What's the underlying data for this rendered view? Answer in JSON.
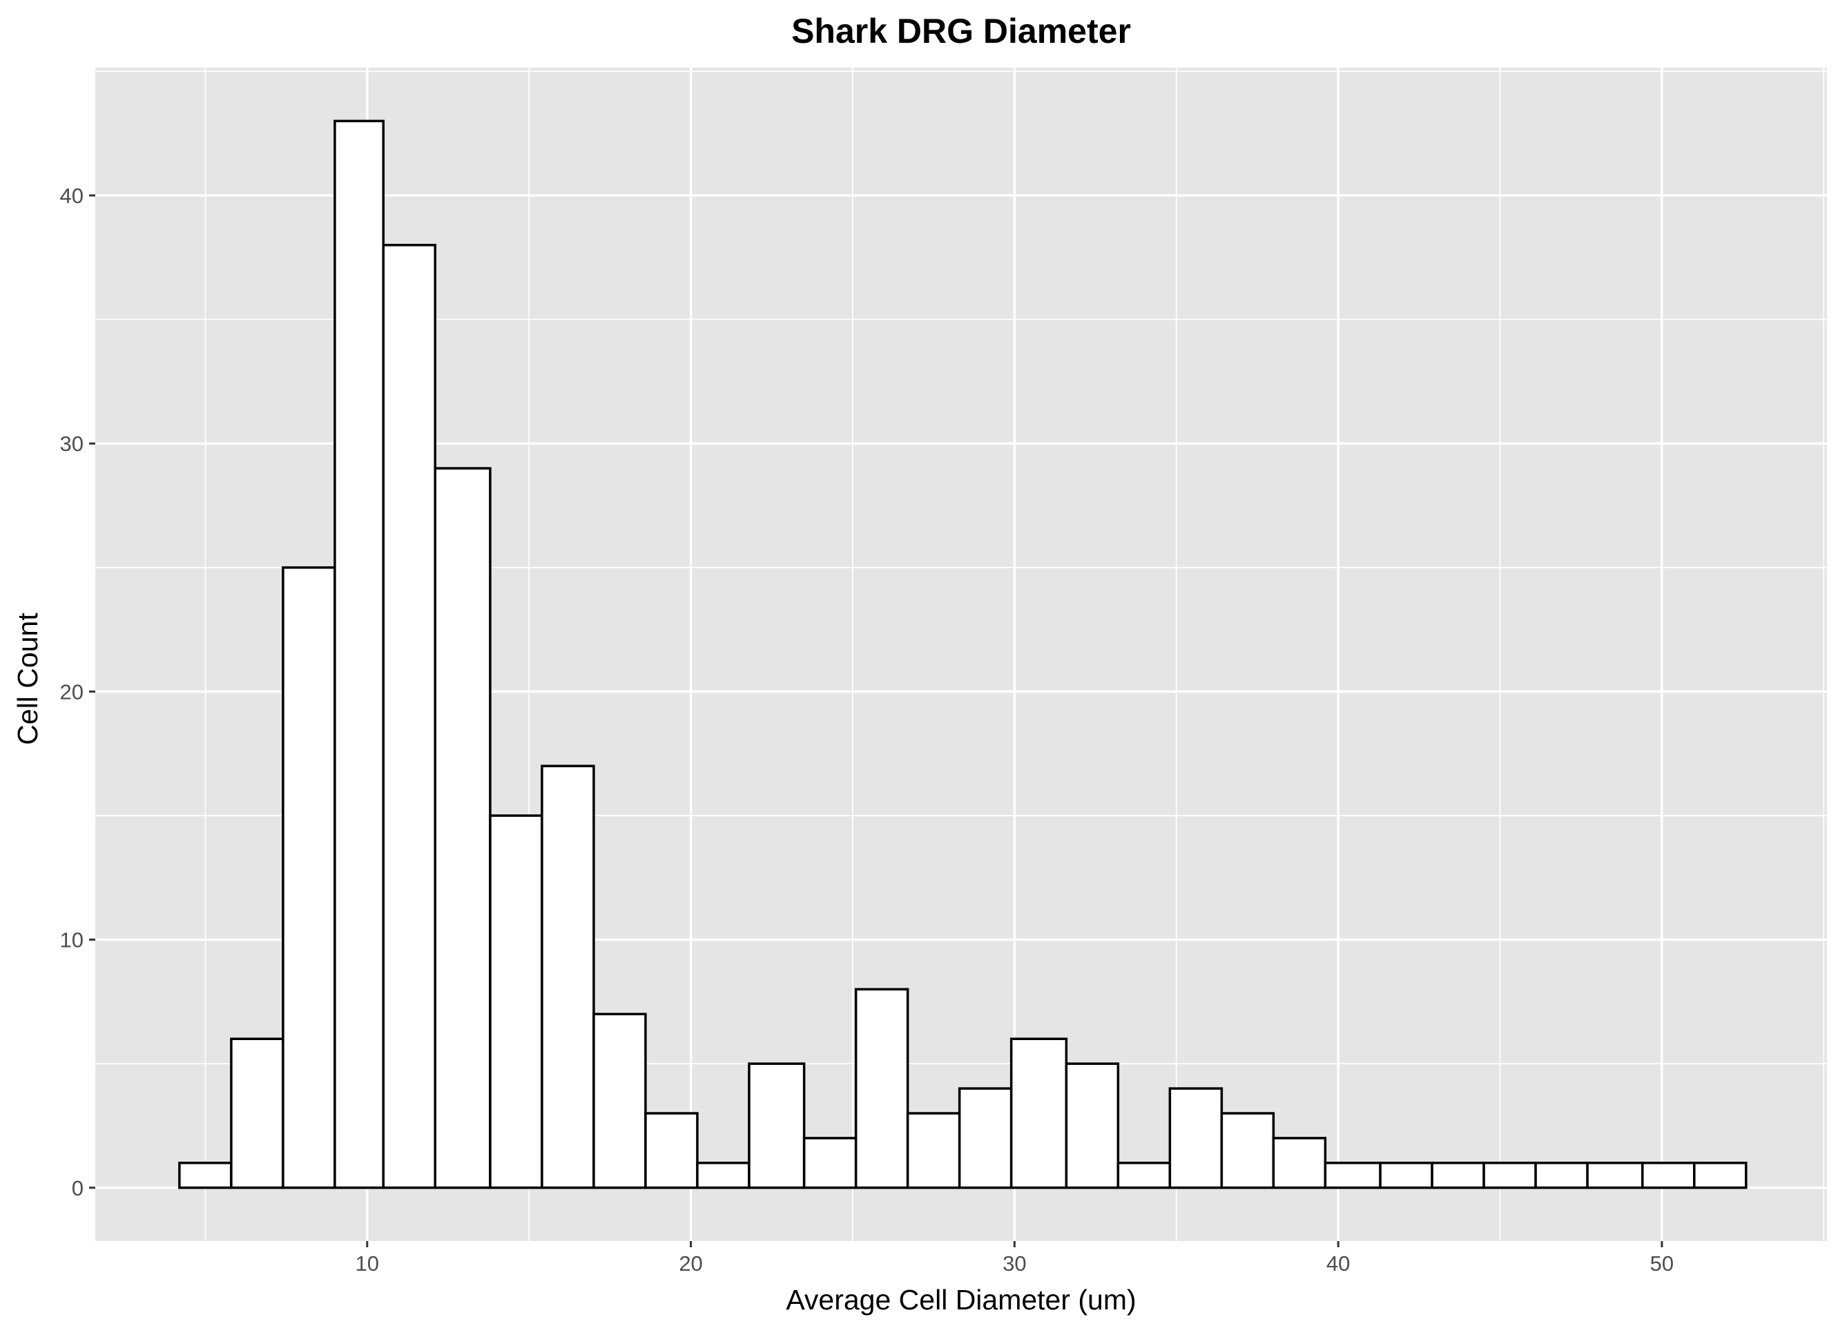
{
  "chart_data": {
    "type": "bar",
    "title": "Shark DRG Diameter",
    "xlabel": "Average Cell Diameter (um)",
    "ylabel": "Cell Count",
    "xlim": [
      1.6,
      55.1
    ],
    "ylim": [
      -2.15,
      45.15
    ],
    "x_ticks": [
      10,
      20,
      30,
      40,
      50
    ],
    "y_ticks": [
      0,
      10,
      20,
      30,
      40
    ],
    "grid": true,
    "bins": [
      {
        "x0": 4.2,
        "x1": 5.8,
        "count": 1
      },
      {
        "x0": 5.8,
        "x1": 7.4,
        "count": 6
      },
      {
        "x0": 7.4,
        "x1": 9.0,
        "count": 25
      },
      {
        "x0": 9.0,
        "x1": 10.5,
        "count": 43
      },
      {
        "x0": 10.5,
        "x1": 12.1,
        "count": 38
      },
      {
        "x0": 12.1,
        "x1": 13.8,
        "count": 29
      },
      {
        "x0": 13.8,
        "x1": 15.4,
        "count": 15
      },
      {
        "x0": 15.4,
        "x1": 17.0,
        "count": 17
      },
      {
        "x0": 17.0,
        "x1": 18.6,
        "count": 7
      },
      {
        "x0": 18.6,
        "x1": 20.2,
        "count": 3
      },
      {
        "x0": 20.2,
        "x1": 21.8,
        "count": 1
      },
      {
        "x0": 21.8,
        "x1": 23.5,
        "count": 5
      },
      {
        "x0": 23.5,
        "x1": 25.1,
        "count": 2
      },
      {
        "x0": 25.1,
        "x1": 26.7,
        "count": 8
      },
      {
        "x0": 26.7,
        "x1": 28.3,
        "count": 3
      },
      {
        "x0": 28.3,
        "x1": 29.9,
        "count": 4
      },
      {
        "x0": 29.9,
        "x1": 31.6,
        "count": 6
      },
      {
        "x0": 31.6,
        "x1": 33.2,
        "count": 5
      },
      {
        "x0": 33.2,
        "x1": 34.8,
        "count": 1
      },
      {
        "x0": 34.8,
        "x1": 36.4,
        "count": 4
      },
      {
        "x0": 36.4,
        "x1": 38.0,
        "count": 3
      },
      {
        "x0": 38.0,
        "x1": 39.6,
        "count": 2
      },
      {
        "x0": 39.6,
        "x1": 41.3,
        "count": 1
      },
      {
        "x0": 41.3,
        "x1": 42.9,
        "count": 1
      },
      {
        "x0": 42.9,
        "x1": 44.5,
        "count": 1
      },
      {
        "x0": 44.5,
        "x1": 46.1,
        "count": 1
      },
      {
        "x0": 46.1,
        "x1": 47.7,
        "count": 1
      },
      {
        "x0": 47.7,
        "x1": 49.4,
        "count": 1
      },
      {
        "x0": 49.4,
        "x1": 51.0,
        "count": 1
      },
      {
        "x0": 51.0,
        "x1": 52.6,
        "count": 1
      }
    ]
  }
}
